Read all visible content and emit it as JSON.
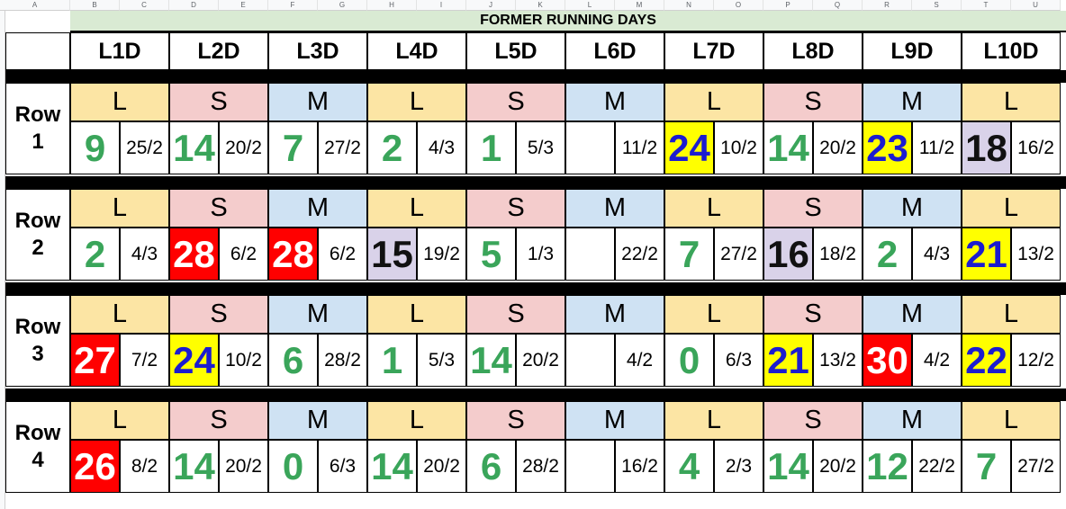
{
  "sheet": {
    "column_letters": [
      "A",
      "B",
      "C",
      "D",
      "E",
      "F",
      "G",
      "H",
      "I",
      "J",
      "K",
      "L",
      "M",
      "N",
      "O",
      "P",
      "Q",
      "R",
      "S",
      "T",
      "U"
    ],
    "title": "FORMER RUNNING DAYS",
    "headers": [
      "L1D",
      "L2D",
      "L3D",
      "L4D",
      "L5D",
      "L6D",
      "L7D",
      "L8D",
      "L9D",
      "L10D"
    ],
    "rows": [
      {
        "label": [
          "Row",
          "1"
        ],
        "types": [
          "L",
          "S",
          "M",
          "L",
          "S",
          "M",
          "L",
          "S",
          "M",
          "L"
        ],
        "values": [
          {
            "n": "9",
            "d": "25/2",
            "style": "green"
          },
          {
            "n": "14",
            "d": "20/2",
            "style": "green"
          },
          {
            "n": "7",
            "d": "27/2",
            "style": "green"
          },
          {
            "n": "2",
            "d": "4/3",
            "style": "green"
          },
          {
            "n": "1",
            "d": "5/3",
            "style": "green"
          },
          {
            "n": "",
            "d": "11/2",
            "style": "white"
          },
          {
            "n": "24",
            "d": "10/2",
            "style": "yellow"
          },
          {
            "n": "14",
            "d": "20/2",
            "style": "green"
          },
          {
            "n": "23",
            "d": "11/2",
            "style": "yellow"
          },
          {
            "n": "18",
            "d": "16/2",
            "style": "purple"
          }
        ]
      },
      {
        "label": [
          "Row",
          "2"
        ],
        "types": [
          "L",
          "S",
          "M",
          "L",
          "S",
          "M",
          "L",
          "S",
          "M",
          "L"
        ],
        "values": [
          {
            "n": "2",
            "d": "4/3",
            "style": "green"
          },
          {
            "n": "28",
            "d": "6/2",
            "style": "red"
          },
          {
            "n": "28",
            "d": "6/2",
            "style": "red"
          },
          {
            "n": "15",
            "d": "19/2",
            "style": "purple"
          },
          {
            "n": "5",
            "d": "1/3",
            "style": "green"
          },
          {
            "n": "",
            "d": "22/2",
            "style": "white"
          },
          {
            "n": "7",
            "d": "27/2",
            "style": "green"
          },
          {
            "n": "16",
            "d": "18/2",
            "style": "purple"
          },
          {
            "n": "2",
            "d": "4/3",
            "style": "green"
          },
          {
            "n": "21",
            "d": "13/2",
            "style": "yellow"
          }
        ]
      },
      {
        "label": [
          "Row",
          "3"
        ],
        "types": [
          "L",
          "S",
          "M",
          "L",
          "S",
          "M",
          "L",
          "S",
          "M",
          "L"
        ],
        "values": [
          {
            "n": "27",
            "d": "7/2",
            "style": "red"
          },
          {
            "n": "24",
            "d": "10/2",
            "style": "yellow"
          },
          {
            "n": "6",
            "d": "28/2",
            "style": "green"
          },
          {
            "n": "1",
            "d": "5/3",
            "style": "green"
          },
          {
            "n": "14",
            "d": "20/2",
            "style": "green"
          },
          {
            "n": "",
            "d": "4/2",
            "style": "white"
          },
          {
            "n": "0",
            "d": "6/3",
            "style": "green"
          },
          {
            "n": "21",
            "d": "13/2",
            "style": "yellow"
          },
          {
            "n": "30",
            "d": "4/2",
            "style": "red"
          },
          {
            "n": "22",
            "d": "12/2",
            "style": "yellow"
          }
        ]
      },
      {
        "label": [
          "Row",
          "4"
        ],
        "types": [
          "L",
          "S",
          "M",
          "L",
          "S",
          "M",
          "L",
          "S",
          "M",
          "L"
        ],
        "values": [
          {
            "n": "26",
            "d": "8/2",
            "style": "red"
          },
          {
            "n": "14",
            "d": "20/2",
            "style": "green"
          },
          {
            "n": "0",
            "d": "6/3",
            "style": "green"
          },
          {
            "n": "14",
            "d": "20/2",
            "style": "green"
          },
          {
            "n": "6",
            "d": "28/2",
            "style": "green"
          },
          {
            "n": "",
            "d": "16/2",
            "style": "white"
          },
          {
            "n": "4",
            "d": "2/3",
            "style": "green"
          },
          {
            "n": "14",
            "d": "20/2",
            "style": "green"
          },
          {
            "n": "12",
            "d": "22/2",
            "style": "green"
          },
          {
            "n": "7",
            "d": "27/2",
            "style": "green"
          }
        ]
      }
    ],
    "colors": {
      "L_bg": "#fce5a4",
      "S_bg": "#f4cccc",
      "M_bg": "#cfe2f3",
      "green_text": "#3aa55a",
      "red_fill": "#ff0000",
      "yellow_fill": "#ffff00",
      "blue_text": "#1c1ccf",
      "purple_fill": "#d9d2e9",
      "title_bg": "#d9ead3"
    }
  }
}
